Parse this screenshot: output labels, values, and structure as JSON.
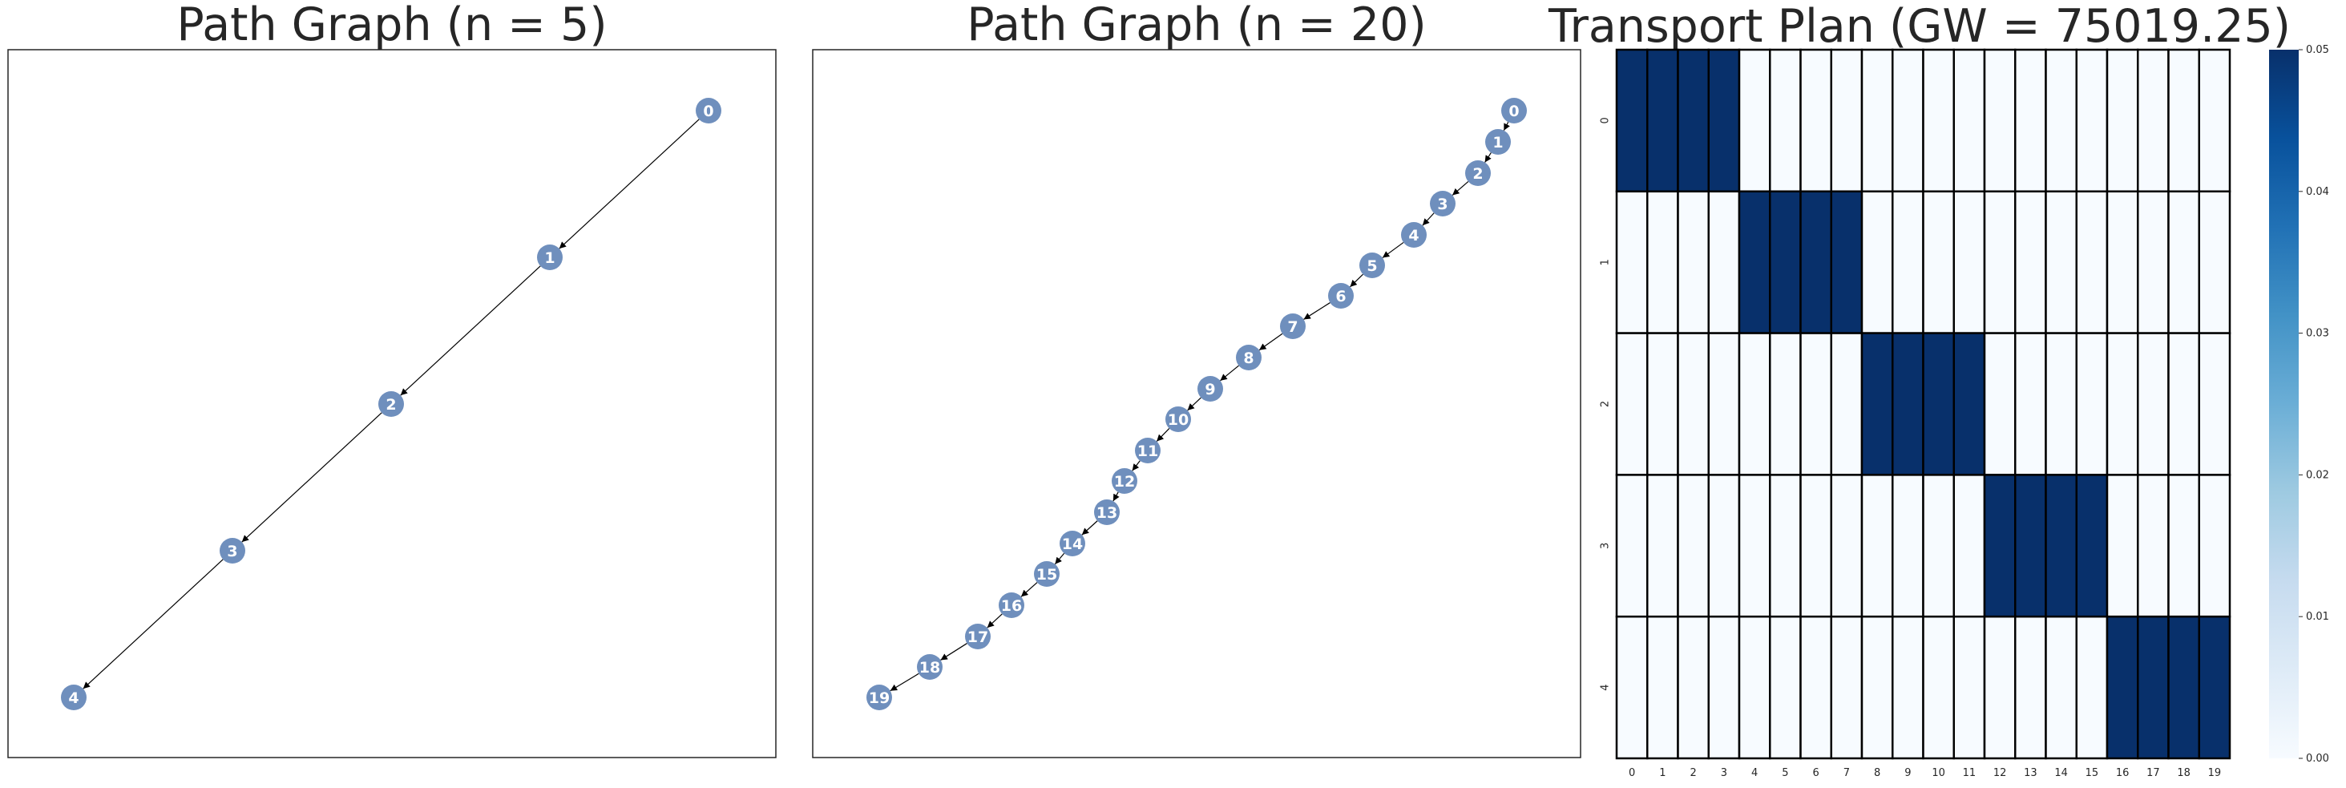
{
  "chart_data": [
    {
      "type": "graph",
      "title": "Path Graph (n = 5)",
      "nodes": [
        "0",
        "1",
        "2",
        "3",
        "4"
      ],
      "edges": [
        [
          "0",
          "1"
        ],
        [
          "1",
          "2"
        ],
        [
          "2",
          "3"
        ],
        [
          "3",
          "4"
        ]
      ],
      "directed": true,
      "node_color": "#6f8fbd"
    },
    {
      "type": "graph",
      "title": "Path Graph (n = 20)",
      "nodes": [
        "0",
        "1",
        "2",
        "3",
        "4",
        "5",
        "6",
        "7",
        "8",
        "9",
        "10",
        "11",
        "12",
        "13",
        "14",
        "15",
        "16",
        "17",
        "18",
        "19"
      ],
      "edges": [
        [
          "0",
          "1"
        ],
        [
          "1",
          "2"
        ],
        [
          "2",
          "3"
        ],
        [
          "3",
          "4"
        ],
        [
          "4",
          "5"
        ],
        [
          "5",
          "6"
        ],
        [
          "6",
          "7"
        ],
        [
          "7",
          "8"
        ],
        [
          "8",
          "9"
        ],
        [
          "9",
          "10"
        ],
        [
          "10",
          "11"
        ],
        [
          "11",
          "12"
        ],
        [
          "12",
          "13"
        ],
        [
          "13",
          "14"
        ],
        [
          "14",
          "15"
        ],
        [
          "15",
          "16"
        ],
        [
          "16",
          "17"
        ],
        [
          "17",
          "18"
        ],
        [
          "18",
          "19"
        ]
      ],
      "directed": true,
      "node_color": "#6f8fbd"
    },
    {
      "type": "heatmap",
      "title": "Transport Plan (GW = 75019.25)",
      "rows": [
        "0",
        "1",
        "2",
        "3",
        "4"
      ],
      "cols": [
        "0",
        "1",
        "2",
        "3",
        "4",
        "5",
        "6",
        "7",
        "8",
        "9",
        "10",
        "11",
        "12",
        "13",
        "14",
        "15",
        "16",
        "17",
        "18",
        "19"
      ],
      "values": [
        [
          0.05,
          0.05,
          0.05,
          0.05,
          0,
          0,
          0,
          0,
          0,
          0,
          0,
          0,
          0,
          0,
          0,
          0,
          0,
          0,
          0,
          0
        ],
        [
          0,
          0,
          0,
          0,
          0.05,
          0.05,
          0.05,
          0.05,
          0,
          0,
          0,
          0,
          0,
          0,
          0,
          0,
          0,
          0,
          0,
          0
        ],
        [
          0,
          0,
          0,
          0,
          0,
          0,
          0,
          0,
          0.05,
          0.05,
          0.05,
          0.05,
          0,
          0,
          0,
          0,
          0,
          0,
          0,
          0
        ],
        [
          0,
          0,
          0,
          0,
          0,
          0,
          0,
          0,
          0,
          0,
          0,
          0,
          0.05,
          0.05,
          0.05,
          0.05,
          0,
          0,
          0,
          0
        ],
        [
          0,
          0,
          0,
          0,
          0,
          0,
          0,
          0,
          0,
          0,
          0,
          0,
          0,
          0,
          0,
          0,
          0.05,
          0.05,
          0.05,
          0.05
        ]
      ],
      "colormap": "Blues",
      "vmin": 0.0,
      "vmax": 0.05,
      "colorbar_ticks": [
        "0.00",
        "0.01",
        "0.02",
        "0.03",
        "0.04",
        "0.05"
      ]
    }
  ]
}
